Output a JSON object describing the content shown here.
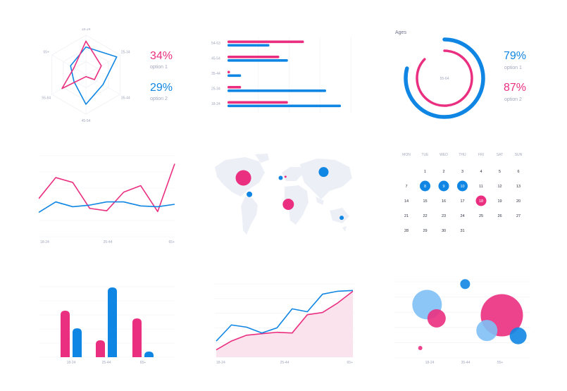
{
  "colors": {
    "pink": "#ea2f80",
    "blue": "#0f86e3",
    "lightblue": "#7fc0f6",
    "grid": "#eef0f4",
    "label": "#a3a8bd",
    "map": "#eceff5"
  },
  "radar": {
    "axes": [
      "18-24",
      "25-34",
      "35-44",
      "45-54",
      "55-64",
      "55+"
    ],
    "stats": [
      {
        "value": "34%",
        "label": "option 1",
        "color": "pink"
      },
      {
        "value": "29%",
        "label": "option 2",
        "color": "blue"
      }
    ]
  },
  "hbars": {
    "categories": [
      "54-63",
      "45-54",
      "35-44",
      "25-34",
      "18-24"
    ]
  },
  "ring": {
    "title": "Ages",
    "center": "55-64",
    "stats": [
      {
        "value": "79%",
        "label": "option 1",
        "color": "blue"
      },
      {
        "value": "87%",
        "label": "option 2",
        "color": "pink"
      }
    ]
  },
  "line1": {
    "ticks": [
      "18-24",
      "25-44",
      "65+"
    ]
  },
  "calendar": {
    "days": [
      "MON",
      "TUE",
      "WED",
      "THU",
      "FRI",
      "SAT",
      "SUN"
    ],
    "weeks": [
      [
        "",
        "1",
        "2",
        "3",
        "4",
        "5",
        "6"
      ],
      [
        "7",
        "8",
        "9",
        "10",
        "11",
        "12",
        "13"
      ],
      [
        "14",
        "15",
        "16",
        "17",
        "18",
        "19",
        "20"
      ],
      [
        "21",
        "22",
        "23",
        "24",
        "25",
        "26",
        "27"
      ],
      [
        "28",
        "29",
        "30",
        "31",
        "",
        "",
        ""
      ]
    ],
    "highlight_blue": [
      "8",
      "9",
      "10"
    ],
    "highlight_pink": [
      "18"
    ]
  },
  "vbars": {
    "ticks": [
      "18-24",
      "25-44",
      "65+"
    ]
  },
  "area": {
    "ticks": [
      "18-24",
      "25-44",
      "65+"
    ]
  },
  "bubbles": {
    "ticks": [
      "18-24",
      "35-44",
      "55+"
    ]
  },
  "chart_data": [
    {
      "type": "radar",
      "categories": [
        "18-24",
        "25-34",
        "35-44",
        "45-54",
        "55-64",
        "55+"
      ],
      "series": [
        {
          "values": [
            0.85,
            0.45,
            0.25,
            0.05,
            0.7,
            0.35
          ],
          "color": "pink"
        },
        {
          "values": [
            0.7,
            0.9,
            0.5,
            0.75,
            0.35,
            0.45
          ],
          "color": "blue"
        }
      ]
    },
    {
      "type": "bar",
      "orientation": "horizontal",
      "categories": [
        "54-63",
        "45-54",
        "35-44",
        "25-34",
        "18-24"
      ],
      "xlim": [
        0,
        100
      ],
      "series": [
        {
          "values": [
            62,
            42,
            2,
            11,
            49
          ],
          "color": "pink"
        },
        {
          "values": [
            34,
            49,
            11,
            80,
            92
          ],
          "color": "blue"
        }
      ]
    },
    {
      "type": "pie",
      "subtype": "ring",
      "series": [
        {
          "value": 79,
          "color": "blue"
        },
        {
          "value": 87,
          "color": "pink"
        }
      ]
    },
    {
      "type": "line",
      "ylim": [
        0,
        100
      ],
      "series": [
        {
          "values": [
            47,
            73,
            67,
            35,
            32,
            55,
            63,
            31,
            90
          ],
          "color": "pink"
        },
        {
          "values": [
            30,
            43,
            37,
            39,
            43,
            43,
            38,
            37,
            40
          ],
          "color": "blue"
        }
      ]
    },
    {
      "type": "scatter",
      "subtype": "map-bubbles",
      "points": [
        {
          "lon": -100,
          "lat": 40,
          "r": 11,
          "color": "pink"
        },
        {
          "lon": -85,
          "lat": 12,
          "r": 4,
          "color": "blue"
        },
        {
          "lon": -7,
          "lat": 40,
          "r": 3,
          "color": "blue"
        },
        {
          "lon": 5,
          "lat": 42,
          "r": 1.5,
          "color": "pink"
        },
        {
          "lon": 100,
          "lat": 50,
          "r": 7,
          "color": "blue"
        },
        {
          "lon": 12,
          "lat": -5,
          "r": 8,
          "color": "pink"
        },
        {
          "lon": 145,
          "lat": -28,
          "r": 3,
          "color": "blue"
        }
      ]
    },
    {
      "type": "bar",
      "ylim": [
        0,
        100
      ],
      "groups": 3,
      "series": [
        {
          "values": [
            66,
            24,
            55
          ],
          "color": "pink"
        },
        {
          "values": [
            41,
            99,
            8
          ],
          "color": "blue"
        }
      ]
    },
    {
      "type": "area",
      "ylim": [
        0,
        100
      ],
      "series": [
        {
          "values": [
            10,
            22,
            30,
            32,
            34,
            33,
            58,
            61,
            74,
            90
          ],
          "color": "pink",
          "fill": true
        },
        {
          "values": [
            22,
            44,
            41,
            33,
            40,
            66,
            62,
            86,
            90,
            91
          ],
          "color": "blue"
        }
      ]
    },
    {
      "type": "scatter",
      "subtype": "bubble",
      "xlim": [
        0,
        100
      ],
      "ylim": [
        0,
        100
      ],
      "points": [
        {
          "x": 24,
          "y": 70,
          "r": 21,
          "color": "lightblue"
        },
        {
          "x": 31,
          "y": 52,
          "r": 13,
          "color": "pink"
        },
        {
          "x": 52,
          "y": 97,
          "r": 7,
          "color": "blue"
        },
        {
          "x": 79,
          "y": 56,
          "r": 30,
          "color": "pink"
        },
        {
          "x": 68,
          "y": 36,
          "r": 15,
          "color": "lightblue"
        },
        {
          "x": 91,
          "y": 29,
          "r": 12,
          "color": "blue"
        },
        {
          "x": 19,
          "y": 13,
          "r": 3,
          "color": "pink"
        }
      ]
    }
  ]
}
